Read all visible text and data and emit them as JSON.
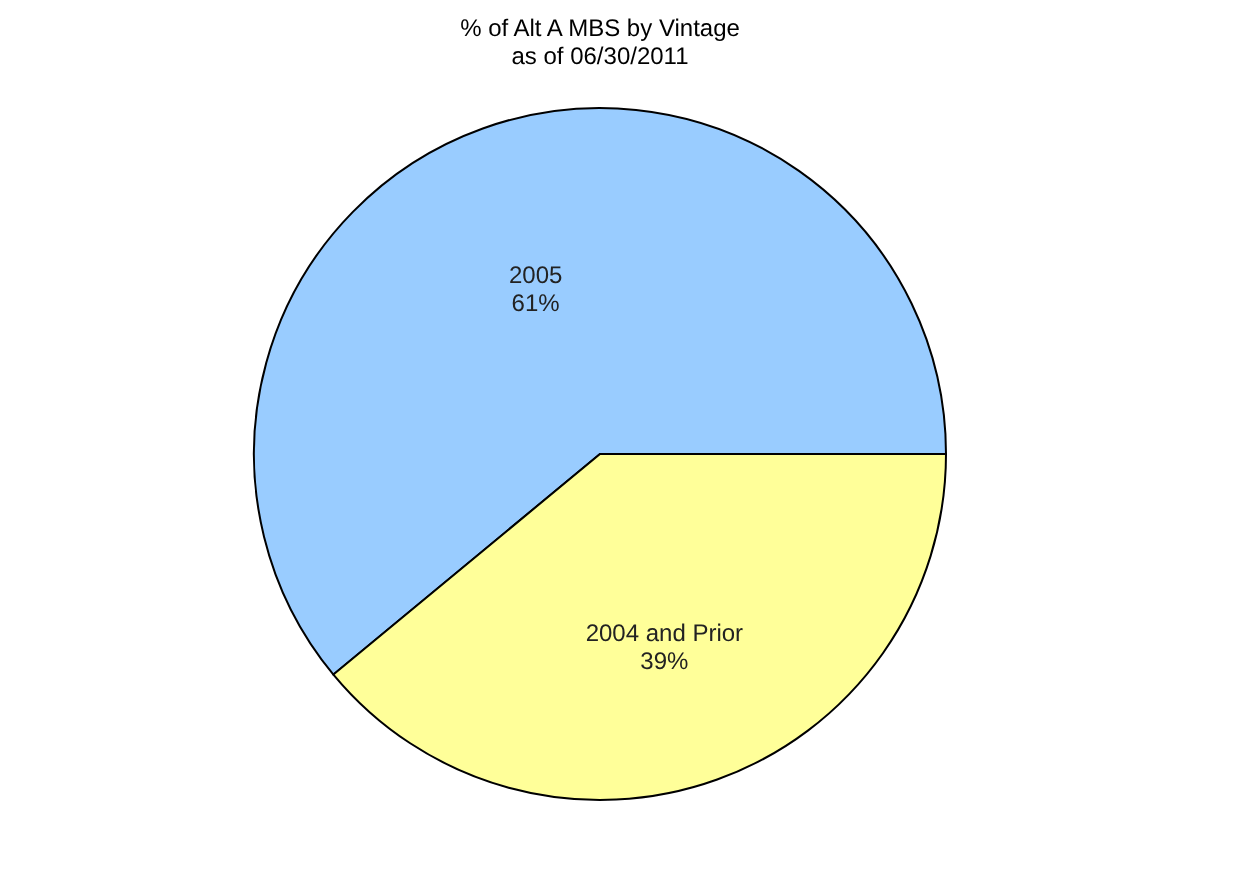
{
  "chart_data": {
    "type": "pie",
    "title": "% of Alt A MBS by Vintage",
    "subtitle": "as of 06/30/2011",
    "categories": [
      "2005",
      "2004 and Prior"
    ],
    "values": [
      61,
      39
    ],
    "value_labels": [
      "61%",
      "39%"
    ],
    "colors": [
      "#99ccff",
      "#ffff99"
    ],
    "legend": false
  }
}
